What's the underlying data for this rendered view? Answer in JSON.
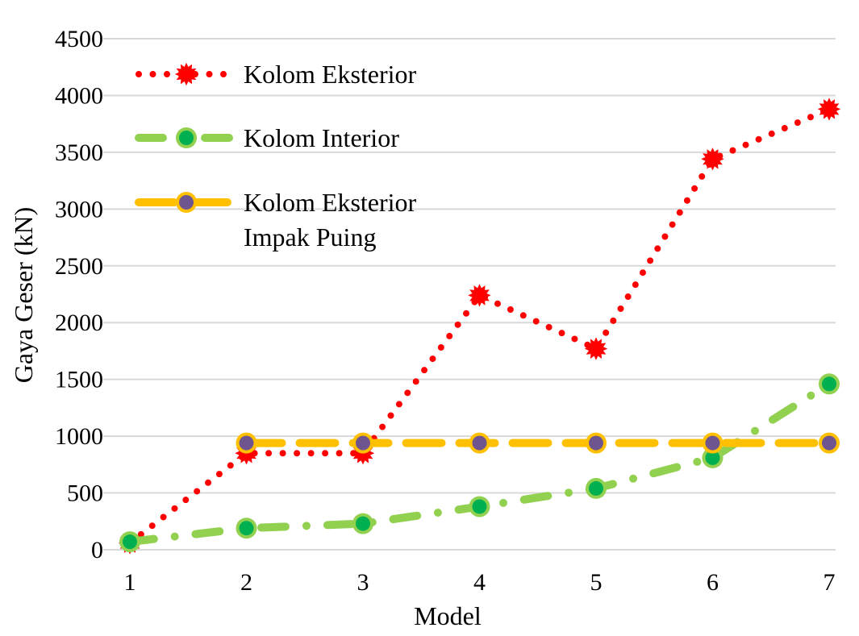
{
  "chart_data": {
    "type": "line",
    "title": "",
    "xlabel": "Model",
    "ylabel": "Gaya Geser (kN)",
    "categories": [
      "1",
      "2",
      "3",
      "4",
      "5",
      "6",
      "7"
    ],
    "ylim": [
      0,
      4500
    ],
    "yticks": [
      "0",
      "500",
      "1000",
      "1500",
      "2000",
      "2500",
      "3000",
      "3500",
      "4000",
      "4500"
    ],
    "grid": true,
    "legend_position": "top-left",
    "series": [
      {
        "name": "Kolom Eksterior",
        "name_lines": [
          "Kolom Eksterior"
        ],
        "values": [
          60,
          850,
          850,
          2240,
          1770,
          3440,
          3880
        ],
        "color": "#ff0000",
        "marker_color": "#ff0000",
        "style": "dotted"
      },
      {
        "name": "Kolom Interior",
        "name_lines": [
          "Kolom Interior"
        ],
        "values": [
          70,
          190,
          230,
          380,
          540,
          810,
          1460
        ],
        "color": "#92d050",
        "marker_color": "#00b050",
        "style": "dash-dot"
      },
      {
        "name": "Kolom Eksterior Impak Puing",
        "name_lines": [
          "Kolom Eksterior",
          "Impak Puing"
        ],
        "values": [
          null,
          940,
          940,
          940,
          940,
          940,
          940
        ],
        "color": "#ffc000",
        "marker_color": "#6f5590",
        "style": "dashed"
      }
    ]
  }
}
